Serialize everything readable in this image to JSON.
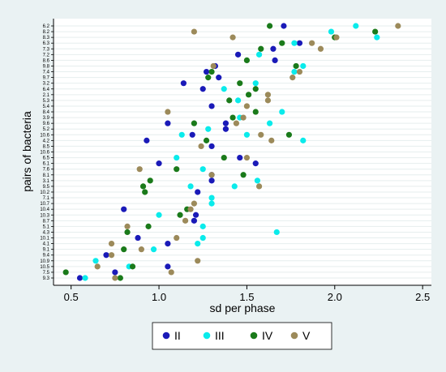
{
  "chart_data": {
    "type": "scatter",
    "title": "",
    "xlabel": "sd per phase",
    "ylabel": "pairs of bacteria",
    "xlim": [
      0.4,
      2.55
    ],
    "xticks": [
      0.5,
      1.0,
      1.5,
      2.0,
      2.5
    ],
    "xtick_labels": [
      "0.5",
      "1.0",
      "1.5",
      "2.0",
      "2.5"
    ],
    "grid": "horizontal",
    "legend_position": "bottom",
    "categories": [
      "6.2",
      "8.2",
      "8.3",
      "6.3",
      "7.3",
      "7.2",
      "8.6",
      "9.8",
      "7.4",
      "9.7",
      "3.2",
      "6.4",
      "2.1",
      "5.3",
      "5.4",
      "8.4",
      "3.9",
      "9.6",
      "5.2",
      "10.6",
      "4.2",
      "8.5",
      "10.6",
      "6.5",
      "6.1",
      "7.6",
      "8.1",
      "3.1",
      "9.5",
      "10.2",
      "7.1",
      "10.7",
      "10.4",
      "10.3",
      "8.7",
      "5.1",
      "4.3",
      "10.1",
      "4.1",
      "9.1",
      "9.4",
      "10.9",
      "10.5",
      "7.5",
      "9.3"
    ],
    "series": [
      {
        "name": "II",
        "color": "#1a1ab8",
        "points": [
          [
            1.71,
            "6.2"
          ],
          [
            1.8,
            "6.3"
          ],
          [
            1.65,
            "7.3"
          ],
          [
            1.45,
            "7.2"
          ],
          [
            1.66,
            "8.6"
          ],
          [
            1.32,
            "9.8"
          ],
          [
            1.27,
            "7.4"
          ],
          [
            1.34,
            "9.7"
          ],
          [
            1.14,
            "3.2"
          ],
          [
            1.25,
            "6.4"
          ],
          [
            1.3,
            "5.4"
          ],
          [
            1.05,
            "9.6"
          ],
          [
            1.38,
            "5.2"
          ],
          [
            1.19,
            "10.6"
          ],
          [
            0.93,
            "4.2"
          ],
          [
            1.3,
            "8.5"
          ],
          [
            1.46,
            "6.5"
          ],
          [
            1.0,
            "6.1"
          ],
          [
            1.3,
            "3.1"
          ],
          [
            1.3,
            "8.1"
          ],
          [
            1.22,
            "10.2"
          ],
          [
            0.8,
            "10.4"
          ],
          [
            1.2,
            "8.7"
          ],
          [
            0.88,
            "10.1"
          ],
          [
            1.05,
            "4.1"
          ],
          [
            0.7,
            "9.4"
          ],
          [
            1.05,
            "10.5"
          ],
          [
            0.55,
            "9.3"
          ],
          [
            0.75,
            "7.5"
          ],
          [
            1.21,
            "10.3"
          ],
          [
            1.55,
            "6.1"
          ],
          [
            1.38,
            "9.6"
          ]
        ]
      },
      {
        "name": "III",
        "color": "#0aebeb",
        "points": [
          [
            2.12,
            "6.2"
          ],
          [
            1.98,
            "8.2"
          ],
          [
            2.24,
            "8.3"
          ],
          [
            1.77,
            "6.3"
          ],
          [
            1.57,
            "7.2"
          ],
          [
            1.82,
            "9.8"
          ],
          [
            1.77,
            "7.4"
          ],
          [
            1.55,
            "3.2"
          ],
          [
            1.45,
            "5.3"
          ],
          [
            1.7,
            "8.4"
          ],
          [
            1.46,
            "3.9"
          ],
          [
            1.63,
            "9.6"
          ],
          [
            1.82,
            "4.2"
          ],
          [
            1.5,
            "10.6"
          ],
          [
            1.1,
            "6.5"
          ],
          [
            1.25,
            "7.6"
          ],
          [
            1.56,
            "3.1"
          ],
          [
            1.43,
            "9.5"
          ],
          [
            1.3,
            "7.1"
          ],
          [
            1.0,
            "10.3"
          ],
          [
            1.25,
            "5.1"
          ],
          [
            1.67,
            "4.3"
          ],
          [
            1.22,
            "4.1"
          ],
          [
            0.97,
            "9.1"
          ],
          [
            0.64,
            "10.9"
          ],
          [
            0.83,
            "10.5"
          ],
          [
            0.58,
            "9.3"
          ],
          [
            1.28,
            "5.2"
          ],
          [
            1.37,
            "6.4"
          ],
          [
            1.18,
            "9.5"
          ],
          [
            1.3,
            "10.7"
          ],
          [
            1.13,
            "10.6"
          ],
          [
            1.25,
            "10.1"
          ]
        ]
      },
      {
        "name": "IV",
        "color": "#1a7a1a",
        "points": [
          [
            1.63,
            "6.2"
          ],
          [
            2.23,
            "8.2"
          ],
          [
            2.0,
            "8.3"
          ],
          [
            1.7,
            "6.3"
          ],
          [
            1.58,
            "7.3"
          ],
          [
            1.5,
            "8.6"
          ],
          [
            1.78,
            "9.8"
          ],
          [
            1.28,
            "9.7"
          ],
          [
            1.46,
            "3.2"
          ],
          [
            1.55,
            "6.4"
          ],
          [
            1.51,
            "2.1"
          ],
          [
            1.4,
            "5.3"
          ],
          [
            1.55,
            "8.4"
          ],
          [
            1.42,
            "3.9"
          ],
          [
            1.2,
            "9.6"
          ],
          [
            1.74,
            "10.6"
          ],
          [
            1.27,
            "4.2"
          ],
          [
            1.37,
            "6.5"
          ],
          [
            1.1,
            "7.6"
          ],
          [
            1.48,
            "8.1"
          ],
          [
            0.95,
            "3.1"
          ],
          [
            0.91,
            "9.5"
          ],
          [
            0.92,
            "10.2"
          ],
          [
            1.16,
            "10.4"
          ],
          [
            1.12,
            "10.3"
          ],
          [
            0.94,
            "5.1"
          ],
          [
            0.82,
            "4.3"
          ],
          [
            0.8,
            "9.1"
          ],
          [
            0.85,
            "10.5"
          ],
          [
            0.47,
            "7.5"
          ],
          [
            0.78,
            "9.3"
          ],
          [
            1.3,
            "7.4"
          ]
        ]
      },
      {
        "name": "V",
        "color": "#9c8a5a",
        "points": [
          [
            2.36,
            "6.2"
          ],
          [
            1.42,
            "8.3"
          ],
          [
            1.87,
            "6.3"
          ],
          [
            1.92,
            "7.3"
          ],
          [
            1.8,
            "7.4"
          ],
          [
            1.31,
            "9.8"
          ],
          [
            1.76,
            "9.7"
          ],
          [
            1.62,
            "2.1"
          ],
          [
            1.62,
            "5.3"
          ],
          [
            1.5,
            "5.4"
          ],
          [
            1.05,
            "8.4"
          ],
          [
            1.48,
            "3.9"
          ],
          [
            1.44,
            "9.6"
          ],
          [
            1.64,
            "4.2"
          ],
          [
            1.24,
            "8.5"
          ],
          [
            1.58,
            "10.6"
          ],
          [
            1.5,
            "6.5"
          ],
          [
            0.89,
            "7.6"
          ],
          [
            1.3,
            "8.1"
          ],
          [
            1.57,
            "9.5"
          ],
          [
            1.2,
            "10.7"
          ],
          [
            1.18,
            "10.4"
          ],
          [
            1.15,
            "8.7"
          ],
          [
            0.82,
            "5.1"
          ],
          [
            1.1,
            "10.1"
          ],
          [
            0.73,
            "4.1"
          ],
          [
            0.9,
            "9.1"
          ],
          [
            0.73,
            "9.4"
          ],
          [
            0.65,
            "10.5"
          ],
          [
            0.75,
            "9.3"
          ],
          [
            1.22,
            "10.9"
          ],
          [
            1.07,
            "7.5"
          ],
          [
            2.01,
            "8.3"
          ],
          [
            1.2,
            "8.2"
          ]
        ]
      }
    ]
  }
}
